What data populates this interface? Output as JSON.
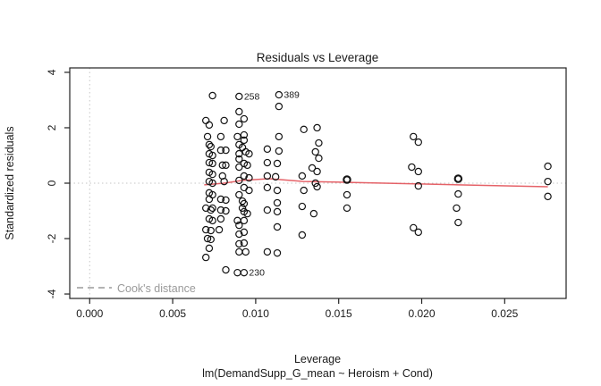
{
  "chart_data": {
    "type": "scatter",
    "title": "Residuals vs Leverage",
    "xlabel": "Leverage",
    "model_formula": "lm(DemandSupp_G_mean ~ Heroism + Cond)",
    "ylabel": "Standardized residuals",
    "xlim": [
      -0.0012,
      0.0287
    ],
    "ylim": [
      -4.16,
      4.16
    ],
    "grid": false,
    "x_ticks": {
      "values": [
        0,
        0.005,
        0.01,
        0.015,
        0.02,
        0.025
      ],
      "labels": [
        "0.000",
        "0.005",
        "0.010",
        "0.015",
        "0.020",
        "0.025"
      ]
    },
    "y_ticks": {
      "values": [
        -4,
        -2,
        0,
        2,
        4
      ],
      "labels": [
        "-4",
        "-2",
        "0",
        "2",
        "4"
      ]
    },
    "reference_lines": {
      "horizontal_zero": 0,
      "vertical_zero": 0,
      "color": "#c6c6c6"
    },
    "point_color": "#141414",
    "smooth_line": {
      "color": "#e0474e",
      "points": [
        [
          0.0069,
          -0.06
        ],
        [
          0.0081,
          0.0
        ],
        [
          0.0092,
          0.1
        ],
        [
          0.0108,
          0.16
        ],
        [
          0.0129,
          0.06
        ],
        [
          0.0156,
          0.03
        ],
        [
          0.0199,
          -0.03
        ],
        [
          0.0222,
          -0.06
        ],
        [
          0.0276,
          -0.13
        ]
      ]
    },
    "points": [
      [
        0.0074,
        3.16
      ],
      [
        0.007,
        2.26
      ],
      [
        0.0072,
        2.1
      ],
      [
        0.0071,
        1.68
      ],
      [
        0.0072,
        1.39
      ],
      [
        0.0073,
        1.32
      ],
      [
        0.0072,
        1.06
      ],
      [
        0.0074,
        1.0
      ],
      [
        0.0072,
        0.74
      ],
      [
        0.0074,
        0.71
      ],
      [
        0.0072,
        0.39
      ],
      [
        0.0074,
        0.32
      ],
      [
        0.0072,
        0.06
      ],
      [
        0.0074,
        0.0
      ],
      [
        0.0072,
        -0.35
      ],
      [
        0.0074,
        -0.42
      ],
      [
        0.0072,
        -0.58
      ],
      [
        0.007,
        -0.9
      ],
      [
        0.0073,
        -0.97
      ],
      [
        0.0074,
        -0.9
      ],
      [
        0.0072,
        -1.29
      ],
      [
        0.0074,
        -1.35
      ],
      [
        0.007,
        -1.68
      ],
      [
        0.0073,
        -1.71
      ],
      [
        0.0071,
        -2.0
      ],
      [
        0.0073,
        -2.03
      ],
      [
        0.0072,
        -2.35
      ],
      [
        0.007,
        -2.68
      ],
      [
        0.0081,
        2.26
      ],
      [
        0.0079,
        1.68
      ],
      [
        0.0079,
        1.19
      ],
      [
        0.0082,
        1.19
      ],
      [
        0.008,
        0.65
      ],
      [
        0.0082,
        0.65
      ],
      [
        0.008,
        0.26
      ],
      [
        0.0081,
        0.06
      ],
      [
        0.0079,
        -0.58
      ],
      [
        0.0082,
        -0.61
      ],
      [
        0.0079,
        -0.97
      ],
      [
        0.0082,
        -1.0
      ],
      [
        0.0079,
        -1.29
      ],
      [
        0.0078,
        -1.68
      ],
      [
        0.0082,
        -3.13
      ],
      [
        0.009,
        3.13
      ],
      [
        0.009,
        2.58
      ],
      [
        0.009,
        2.13
      ],
      [
        0.0089,
        1.68
      ],
      [
        0.009,
        1.39
      ],
      [
        0.0092,
        1.29
      ],
      [
        0.009,
        1.06
      ],
      [
        0.009,
        0.87
      ],
      [
        0.009,
        0.58
      ],
      [
        0.009,
        0.1
      ],
      [
        0.009,
        -0.42
      ],
      [
        0.0092,
        -0.65
      ],
      [
        0.0092,
        -0.9
      ],
      [
        0.0089,
        -1.35
      ],
      [
        0.009,
        -1.52
      ],
      [
        0.009,
        -1.84
      ],
      [
        0.009,
        -2.19
      ],
      [
        0.009,
        -2.48
      ],
      [
        0.0089,
        -3.23
      ],
      [
        0.0093,
        -3.23
      ],
      [
        0.0093,
        2.32
      ],
      [
        0.0093,
        1.74
      ],
      [
        0.0093,
        1.55
      ],
      [
        0.0094,
        1.13
      ],
      [
        0.0096,
        1.06
      ],
      [
        0.0093,
        0.71
      ],
      [
        0.0095,
        0.65
      ],
      [
        0.0093,
        0.26
      ],
      [
        0.0096,
        0.19
      ],
      [
        0.0093,
        -0.16
      ],
      [
        0.0096,
        -0.26
      ],
      [
        0.0093,
        -0.74
      ],
      [
        0.0093,
        -1.03
      ],
      [
        0.0095,
        -1.1
      ],
      [
        0.0093,
        -1.35
      ],
      [
        0.0093,
        -1.77
      ],
      [
        0.0093,
        -2.16
      ],
      [
        0.0094,
        -2.48
      ],
      [
        0.0107,
        1.23
      ],
      [
        0.0107,
        0.74
      ],
      [
        0.0107,
        0.26
      ],
      [
        0.0107,
        -0.16
      ],
      [
        0.0107,
        -0.97
      ],
      [
        0.0107,
        -2.48
      ],
      [
        0.0114,
        3.19
      ],
      [
        0.0114,
        2.77
      ],
      [
        0.0114,
        1.68
      ],
      [
        0.0114,
        1.16
      ],
      [
        0.0113,
        0.71
      ],
      [
        0.0112,
        0.23
      ],
      [
        0.0113,
        -0.26
      ],
      [
        0.0113,
        -0.71
      ],
      [
        0.0113,
        -1.03
      ],
      [
        0.0113,
        -1.58
      ],
      [
        0.0113,
        -2.52
      ],
      [
        0.0129,
        1.94
      ],
      [
        0.0128,
        0.26
      ],
      [
        0.0129,
        -0.26
      ],
      [
        0.0128,
        -0.84
      ],
      [
        0.0128,
        -1.87
      ],
      [
        0.0137,
        2.0
      ],
      [
        0.0138,
        1.45
      ],
      [
        0.0136,
        1.13
      ],
      [
        0.0138,
        0.9
      ],
      [
        0.0134,
        0.55
      ],
      [
        0.0137,
        0.42
      ],
      [
        0.0136,
        0.0
      ],
      [
        0.0137,
        -0.13
      ],
      [
        0.0135,
        -1.1
      ],
      [
        0.0155,
        0.13
      ],
      [
        0.0155,
        -0.42
      ],
      [
        0.0155,
        -0.9
      ],
      [
        0.0195,
        1.68
      ],
      [
        0.0198,
        1.48
      ],
      [
        0.0194,
        0.58
      ],
      [
        0.0198,
        0.42
      ],
      [
        0.0198,
        -0.1
      ],
      [
        0.0195,
        -1.61
      ],
      [
        0.0198,
        -1.77
      ],
      [
        0.0222,
        0.16
      ],
      [
        0.0222,
        -0.39
      ],
      [
        0.0221,
        -0.9
      ],
      [
        0.0222,
        -1.42
      ],
      [
        0.0276,
        0.61
      ],
      [
        0.0276,
        0.06
      ],
      [
        0.0276,
        -0.48
      ]
    ],
    "emphasized_points": [
      [
        0.0155,
        0.13
      ],
      [
        0.0222,
        0.16
      ]
    ],
    "labeled_points": [
      {
        "x": 0.009,
        "y": 3.13,
        "label": "258"
      },
      {
        "x": 0.0114,
        "y": 3.19,
        "label": "389"
      },
      {
        "x": 0.0093,
        "y": -3.23,
        "label": "230"
      }
    ],
    "legend": {
      "label": "Cook's distance",
      "style": "dashed",
      "color": "#9a9a9a"
    }
  }
}
